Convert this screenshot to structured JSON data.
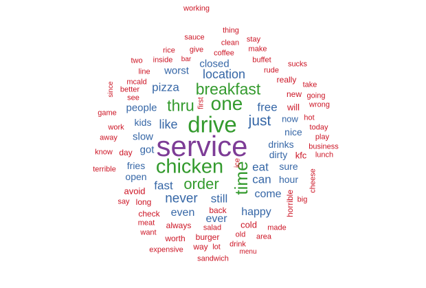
{
  "colors": {
    "red": "#cc1424",
    "blue": "#3566a6",
    "green": "#339a2d",
    "purple": "#7d3c96"
  },
  "words": [
    {
      "text": "service",
      "color": "purple"
    },
    {
      "text": "drive",
      "color": "green"
    },
    {
      "text": "chicken",
      "color": "green"
    },
    {
      "text": "one",
      "color": "green"
    },
    {
      "text": "time",
      "color": "green"
    },
    {
      "text": "breakfast",
      "color": "green"
    },
    {
      "text": "thru",
      "color": "green"
    },
    {
      "text": "order",
      "color": "green"
    },
    {
      "text": "just",
      "color": "blue"
    },
    {
      "text": "location",
      "color": "blue"
    },
    {
      "text": "never",
      "color": "blue"
    },
    {
      "text": "like",
      "color": "blue"
    },
    {
      "text": "pizza",
      "color": "blue"
    },
    {
      "text": "fast",
      "color": "blue"
    },
    {
      "text": "still",
      "color": "blue"
    },
    {
      "text": "can",
      "color": "blue"
    },
    {
      "text": "free",
      "color": "blue"
    },
    {
      "text": "eat",
      "color": "blue"
    },
    {
      "text": "slow",
      "color": "blue"
    },
    {
      "text": "got",
      "color": "blue"
    },
    {
      "text": "people",
      "color": "blue"
    },
    {
      "text": "come",
      "color": "blue"
    },
    {
      "text": "happy",
      "color": "blue"
    },
    {
      "text": "ever",
      "color": "blue"
    },
    {
      "text": "even",
      "color": "blue"
    },
    {
      "text": "worst",
      "color": "blue"
    },
    {
      "text": "closed",
      "color": "blue"
    },
    {
      "text": "kids",
      "color": "blue"
    },
    {
      "text": "fries",
      "color": "blue"
    },
    {
      "text": "open",
      "color": "blue"
    },
    {
      "text": "drinks",
      "color": "blue"
    },
    {
      "text": "dirty",
      "color": "blue"
    },
    {
      "text": "sure",
      "color": "blue"
    },
    {
      "text": "hour",
      "color": "blue"
    },
    {
      "text": "nice",
      "color": "blue"
    },
    {
      "text": "now",
      "color": "blue"
    },
    {
      "text": "working",
      "color": "red"
    },
    {
      "text": "thing",
      "color": "red"
    },
    {
      "text": "sauce",
      "color": "red"
    },
    {
      "text": "stay",
      "color": "red"
    },
    {
      "text": "clean",
      "color": "red"
    },
    {
      "text": "rice",
      "color": "red"
    },
    {
      "text": "give",
      "color": "red"
    },
    {
      "text": "coffee",
      "color": "red"
    },
    {
      "text": "make",
      "color": "red"
    },
    {
      "text": "two",
      "color": "red"
    },
    {
      "text": "inside",
      "color": "red"
    },
    {
      "text": "bar",
      "color": "red"
    },
    {
      "text": "buffet",
      "color": "red"
    },
    {
      "text": "sucks",
      "color": "red"
    },
    {
      "text": "line",
      "color": "red"
    },
    {
      "text": "rude",
      "color": "red"
    },
    {
      "text": "mcald",
      "color": "red"
    },
    {
      "text": "really",
      "color": "red"
    },
    {
      "text": "take",
      "color": "red"
    },
    {
      "text": "since",
      "color": "red"
    },
    {
      "text": "better",
      "color": "red"
    },
    {
      "text": "new",
      "color": "red"
    },
    {
      "text": "going",
      "color": "red"
    },
    {
      "text": "see",
      "color": "red"
    },
    {
      "text": "wrong",
      "color": "red"
    },
    {
      "text": "first",
      "color": "red"
    },
    {
      "text": "will",
      "color": "red"
    },
    {
      "text": "game",
      "color": "red"
    },
    {
      "text": "hot",
      "color": "red"
    },
    {
      "text": "work",
      "color": "red"
    },
    {
      "text": "today",
      "color": "red"
    },
    {
      "text": "away",
      "color": "red"
    },
    {
      "text": "play",
      "color": "red"
    },
    {
      "text": "know",
      "color": "red"
    },
    {
      "text": "day",
      "color": "red"
    },
    {
      "text": "business",
      "color": "red"
    },
    {
      "text": "kfc",
      "color": "red"
    },
    {
      "text": "lunch",
      "color": "red"
    },
    {
      "text": "ice",
      "color": "red"
    },
    {
      "text": "terrible",
      "color": "red"
    },
    {
      "text": "cheese",
      "color": "red"
    },
    {
      "text": "avoid",
      "color": "red"
    },
    {
      "text": "big",
      "color": "red"
    },
    {
      "text": "say",
      "color": "red"
    },
    {
      "text": "long",
      "color": "red"
    },
    {
      "text": "back",
      "color": "red"
    },
    {
      "text": "horrible",
      "color": "red"
    },
    {
      "text": "check",
      "color": "red"
    },
    {
      "text": "meat",
      "color": "red"
    },
    {
      "text": "cold",
      "color": "red"
    },
    {
      "text": "always",
      "color": "red"
    },
    {
      "text": "made",
      "color": "red"
    },
    {
      "text": "want",
      "color": "red"
    },
    {
      "text": "salad",
      "color": "red"
    },
    {
      "text": "old",
      "color": "red"
    },
    {
      "text": "area",
      "color": "red"
    },
    {
      "text": "worth",
      "color": "red"
    },
    {
      "text": "burger",
      "color": "red"
    },
    {
      "text": "drink",
      "color": "red"
    },
    {
      "text": "expensive",
      "color": "red"
    },
    {
      "text": "way",
      "color": "red"
    },
    {
      "text": "lot",
      "color": "red"
    },
    {
      "text": "menu",
      "color": "red"
    },
    {
      "text": "sandwich",
      "color": "red"
    }
  ]
}
